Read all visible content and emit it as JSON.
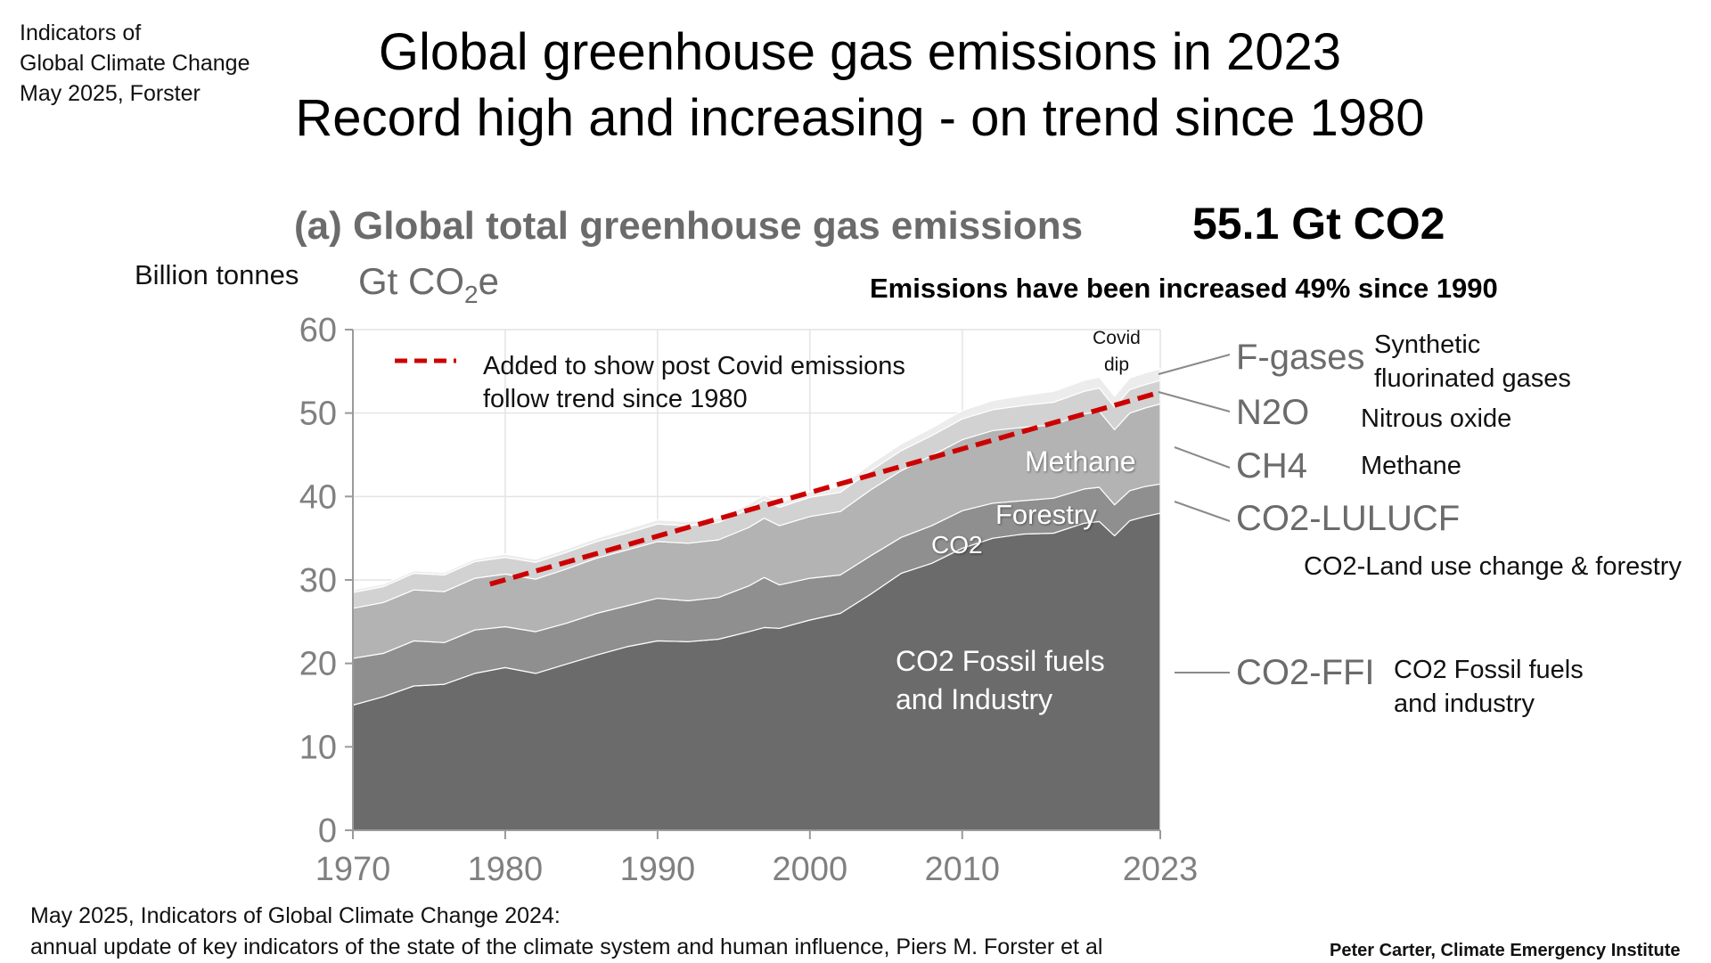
{
  "corner_note": [
    "Indicators of",
    "Global Climate Change",
    "May 2025, Forster"
  ],
  "main_title": [
    "Global greenhouse gas emissions in 2023",
    "Record high and increasing - on trend since 1980"
  ],
  "total_callout": "55.1 Gt CO2",
  "increase_note": "Emissions have been increased 49% since 1990",
  "y_unit_note": "Billion tonnes",
  "trend_legend": [
    "Added to show post Covid emissions",
    "follow trend since 1980"
  ],
  "covid_note": [
    "Covid",
    "dip"
  ],
  "inner_labels": {
    "methane": "Methane",
    "forestry": "Forestry",
    "co2": "CO2",
    "fossil": [
      "CO2 Fossil fuels",
      "and Industry"
    ]
  },
  "gas_descriptions": {
    "fgases": [
      "Synthetic",
      "fluorinated gases"
    ],
    "n2o": "Nitrous oxide",
    "ch4": "Methane",
    "lulucf": "CO2-Land use change & forestry",
    "ffi": [
      "CO2 Fossil fuels",
      "and industry"
    ]
  },
  "citation": [
    "May 2025, Indicators of Global Climate Change 2024:",
    "annual update of key indicators of the state of the climate system and human influence,  Piers M. Forster et al"
  ],
  "credit": "Peter Carter, Climate Emergency Institute",
  "chart_data": {
    "type": "area",
    "stacked": true,
    "title": "(a) Global total greenhouse gas emissions",
    "ylabel_unit": "Gt CO2e",
    "xlim": [
      1970,
      2023
    ],
    "ylim": [
      0,
      60
    ],
    "x_ticks": [
      1970,
      1980,
      1990,
      2000,
      2010,
      2023
    ],
    "y_ticks": [
      0,
      10,
      20,
      30,
      40,
      50,
      60
    ],
    "grid": true,
    "x": [
      1970,
      1972,
      1974,
      1976,
      1978,
      1980,
      1982,
      1984,
      1986,
      1988,
      1990,
      1992,
      1994,
      1996,
      1997,
      1998,
      2000,
      2002,
      2004,
      2006,
      2008,
      2010,
      2012,
      2014,
      2016,
      2018,
      2019,
      2020,
      2021,
      2022,
      2023
    ],
    "series": [
      {
        "name": "CO2-FFI",
        "color": "#6b6b6b",
        "values": [
          15.0,
          16.0,
          17.3,
          17.5,
          18.8,
          19.5,
          18.8,
          19.9,
          21.0,
          22.0,
          22.7,
          22.6,
          22.9,
          23.8,
          24.3,
          24.2,
          25.2,
          26.0,
          28.3,
          30.8,
          32.0,
          33.8,
          35.0,
          35.5,
          35.6,
          36.8,
          37.0,
          35.3,
          37.1,
          37.6,
          38.0
        ]
      },
      {
        "name": "CO2-LULUCF",
        "color": "#8f8f8f",
        "values": [
          5.6,
          5.2,
          5.4,
          5.0,
          5.2,
          4.9,
          5.0,
          4.9,
          5.0,
          4.9,
          5.1,
          4.9,
          5.0,
          5.5,
          6.0,
          5.2,
          5.0,
          4.6,
          4.6,
          4.3,
          4.5,
          4.5,
          4.2,
          4.0,
          4.2,
          4.1,
          4.1,
          3.7,
          3.6,
          3.6,
          3.5
        ]
      },
      {
        "name": "CH4",
        "color": "#b3b3b3",
        "values": [
          6.0,
          6.1,
          6.1,
          6.1,
          6.2,
          6.3,
          6.3,
          6.5,
          6.6,
          6.7,
          6.8,
          6.9,
          6.9,
          7.0,
          7.1,
          7.1,
          7.4,
          7.6,
          7.9,
          8.0,
          8.4,
          8.5,
          8.7,
          8.8,
          8.8,
          9.0,
          9.1,
          9.0,
          9.3,
          9.4,
          9.6
        ]
      },
      {
        "name": "N2O",
        "color": "#d2d2d2",
        "values": [
          1.9,
          1.9,
          2.0,
          2.0,
          2.0,
          2.0,
          2.0,
          2.0,
          2.0,
          2.0,
          2.1,
          2.1,
          2.1,
          2.2,
          2.2,
          2.2,
          2.3,
          2.3,
          2.3,
          2.4,
          2.4,
          2.5,
          2.5,
          2.6,
          2.7,
          2.7,
          2.8,
          2.7,
          2.8,
          2.8,
          2.8
        ]
      },
      {
        "name": "F-gases",
        "color": "#ececec",
        "values": [
          0.3,
          0.3,
          0.3,
          0.3,
          0.3,
          0.4,
          0.4,
          0.4,
          0.4,
          0.5,
          0.5,
          0.5,
          0.5,
          0.6,
          0.6,
          0.6,
          0.7,
          0.7,
          0.8,
          0.8,
          0.9,
          1.0,
          1.1,
          1.2,
          1.3,
          1.3,
          1.3,
          1.3,
          1.4,
          1.4,
          1.4
        ]
      }
    ],
    "trend_line": {
      "x": [
        1979,
        2023
      ],
      "y": [
        29.5,
        52.5
      ],
      "color": "#cc0000",
      "dashed": true
    }
  }
}
